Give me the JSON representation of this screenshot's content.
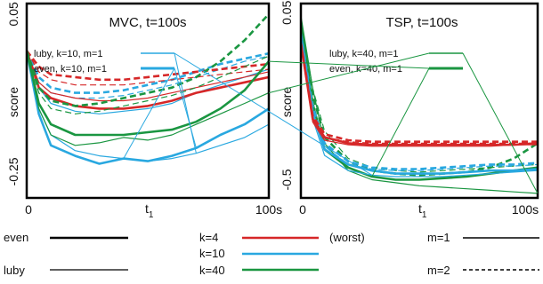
{
  "chart_data": [
    {
      "type": "line",
      "title": "MVC, t=100s",
      "xlabel": "t",
      "xlabel_sub": "1",
      "ylabel": "score",
      "xlim": [
        0,
        100
      ],
      "ylim": [
        -0.3,
        0.07
      ],
      "x_tick_labels": [
        "0",
        "100s"
      ],
      "y_ticks": [
        {
          "value": 0.05,
          "label": "0.05"
        },
        {
          "value": -0.25,
          "label": "-0.25"
        }
      ],
      "grid": false,
      "legend": [
        {
          "label": "luby, k=10, m=1",
          "color": "#29a8e0",
          "dash": "solid",
          "width": 1.4
        },
        {
          "label": "even, k=10, m=1",
          "color": "#29a8e0",
          "dash": "solid",
          "width": 3
        }
      ],
      "x": [
        0,
        5,
        10,
        20,
        30,
        40,
        50,
        60,
        70,
        80,
        90,
        100
      ],
      "series": [
        {
          "group": "luby-k10-m1",
          "color": "#29a8e0",
          "dash": "solid",
          "width": 1.2,
          "values": [
            -0.02,
            -0.13,
            -0.18,
            -0.21,
            -0.22,
            -0.225,
            -0.23,
            -0.225,
            -0.215,
            -0.2,
            -0.185,
            -0.16
          ]
        },
        {
          "group": "even-k10-m1",
          "color": "#29a8e0",
          "dash": "solid",
          "width": 2.6,
          "values": [
            -0.02,
            -0.14,
            -0.2,
            -0.22,
            -0.235,
            -0.225,
            -0.23,
            -0.22,
            -0.205,
            -0.18,
            -0.16,
            -0.13
          ]
        },
        {
          "color": "#29a8e0",
          "dash": "solid",
          "width": 1.2,
          "values": [
            -0.02,
            -0.09,
            -0.12,
            -0.135,
            -0.14,
            -0.135,
            -0.13,
            -0.12,
            -0.1,
            -0.085,
            -0.07,
            -0.055
          ]
        },
        {
          "color": "#29a8e0",
          "dash": "dash",
          "width": 2.6,
          "values": [
            -0.02,
            -0.07,
            -0.09,
            -0.1,
            -0.1,
            -0.095,
            -0.085,
            -0.075,
            -0.06,
            -0.045,
            -0.035,
            -0.025
          ]
        },
        {
          "color": "#29a8e0",
          "dash": "dash",
          "width": 1.2,
          "values": [
            -0.02,
            -0.08,
            -0.1,
            -0.11,
            -0.11,
            -0.105,
            -0.095,
            -0.085,
            -0.07,
            -0.055,
            -0.04,
            -0.03
          ]
        },
        {
          "color": "#d62728",
          "dash": "solid",
          "width": 2.6,
          "values": [
            -0.02,
            -0.09,
            -0.11,
            -0.125,
            -0.13,
            -0.13,
            -0.125,
            -0.115,
            -0.1,
            -0.09,
            -0.08,
            -0.07
          ]
        },
        {
          "color": "#d62728",
          "dash": "solid",
          "width": 1.2,
          "values": [
            -0.02,
            -0.08,
            -0.1,
            -0.11,
            -0.115,
            -0.115,
            -0.11,
            -0.1,
            -0.09,
            -0.08,
            -0.07,
            -0.06
          ]
        },
        {
          "color": "#d62728",
          "dash": "dash",
          "width": 2.6,
          "values": [
            -0.02,
            -0.05,
            -0.065,
            -0.07,
            -0.075,
            -0.075,
            -0.07,
            -0.065,
            -0.06,
            -0.055,
            -0.05,
            -0.045
          ]
        },
        {
          "color": "#d62728",
          "dash": "dash",
          "width": 1.2,
          "values": [
            -0.02,
            -0.06,
            -0.075,
            -0.085,
            -0.085,
            -0.085,
            -0.08,
            -0.075,
            -0.07,
            -0.065,
            -0.06,
            -0.055
          ]
        },
        {
          "color": "#1a9641",
          "dash": "solid",
          "width": 2.6,
          "values": [
            -0.02,
            -0.12,
            -0.16,
            -0.18,
            -0.18,
            -0.18,
            -0.175,
            -0.17,
            -0.155,
            -0.13,
            -0.095,
            -0.04
          ]
        },
        {
          "color": "#1a9641",
          "dash": "solid",
          "width": 1.2,
          "values": [
            -0.02,
            -0.13,
            -0.18,
            -0.2,
            -0.195,
            -0.185,
            -0.19,
            -0.18,
            -0.16,
            -0.14,
            -0.12,
            -0.1
          ]
        },
        {
          "color": "#1a9641",
          "dash": "dash",
          "width": 2.6,
          "values": [
            -0.02,
            -0.09,
            -0.115,
            -0.125,
            -0.12,
            -0.11,
            -0.1,
            -0.09,
            -0.07,
            -0.04,
            0.0,
            0.05
          ]
        },
        {
          "color": "#1a9641",
          "dash": "dash",
          "width": 1.2,
          "values": [
            -0.02,
            -0.1,
            -0.13,
            -0.14,
            -0.135,
            -0.125,
            -0.115,
            -0.105,
            -0.09,
            -0.07,
            -0.05,
            -0.03
          ]
        }
      ]
    },
    {
      "type": "line",
      "title": "TSP, t=100s",
      "xlabel": "t",
      "xlabel_sub": "1",
      "ylabel": "score",
      "xlim": [
        0,
        100
      ],
      "ylim": [
        -0.56,
        0.08
      ],
      "x_tick_labels": [
        "0",
        "100s"
      ],
      "y_ticks": [
        {
          "value": 0.05,
          "label": "0.05"
        },
        {
          "value": -0.5,
          "label": "-0.5"
        }
      ],
      "grid": false,
      "legend": [
        {
          "label": "luby, k=40, m=1",
          "color": "#1a9641",
          "dash": "solid",
          "width": 1.4
        },
        {
          "label": "even, k=40, m=1",
          "color": "#1a9641",
          "dash": "solid",
          "width": 3
        }
      ],
      "x": [
        0,
        5,
        10,
        20,
        30,
        40,
        50,
        60,
        70,
        80,
        90,
        100
      ],
      "series": [
        {
          "group": "luby-k40-m1",
          "color": "#1a9641",
          "dash": "solid",
          "width": 1.2,
          "values": [
            0.04,
            -0.2,
            -0.38,
            -0.47,
            -0.5,
            -0.51,
            -0.52,
            -0.525,
            -0.53,
            -0.535,
            -0.54,
            -0.545
          ]
        },
        {
          "group": "even-k40-m1",
          "color": "#1a9641",
          "dash": "solid",
          "width": 2.6,
          "values": [
            0.02,
            -0.25,
            -0.4,
            -0.46,
            -0.49,
            -0.5,
            -0.5,
            -0.495,
            -0.49,
            -0.48,
            -0.47,
            -0.46
          ]
        },
        {
          "color": "#1a9641",
          "dash": "dash",
          "width": 2.6,
          "values": [
            0.02,
            -0.22,
            -0.36,
            -0.44,
            -0.47,
            -0.48,
            -0.485,
            -0.48,
            -0.475,
            -0.46,
            -0.43,
            -0.38
          ]
        },
        {
          "color": "#1a9641",
          "dash": "dash",
          "width": 1.2,
          "values": [
            0.03,
            -0.2,
            -0.34,
            -0.43,
            -0.46,
            -0.47,
            -0.475,
            -0.47,
            -0.465,
            -0.46,
            -0.455,
            -0.45
          ]
        },
        {
          "color": "#29a8e0",
          "dash": "solid",
          "width": 2.6,
          "values": [
            -0.02,
            -0.28,
            -0.4,
            -0.45,
            -0.47,
            -0.48,
            -0.48,
            -0.48,
            -0.475,
            -0.47,
            -0.47,
            -0.465
          ]
        },
        {
          "color": "#29a8e0",
          "dash": "solid",
          "width": 1.2,
          "values": [
            -0.02,
            -0.3,
            -0.42,
            -0.47,
            -0.485,
            -0.49,
            -0.49,
            -0.49,
            -0.485,
            -0.48,
            -0.475,
            -0.47
          ]
        },
        {
          "color": "#29a8e0",
          "dash": "dash",
          "width": 2.6,
          "values": [
            -0.02,
            -0.26,
            -0.38,
            -0.44,
            -0.46,
            -0.465,
            -0.465,
            -0.46,
            -0.455,
            -0.45,
            -0.45,
            -0.445
          ]
        },
        {
          "color": "#29a8e0",
          "dash": "dash",
          "width": 1.2,
          "values": [
            -0.02,
            -0.27,
            -0.39,
            -0.45,
            -0.465,
            -0.47,
            -0.47,
            -0.465,
            -0.46,
            -0.455,
            -0.455,
            -0.45
          ]
        },
        {
          "color": "#d62728",
          "dash": "solid",
          "width": 2.6,
          "values": [
            -0.05,
            -0.3,
            -0.36,
            -0.38,
            -0.385,
            -0.385,
            -0.385,
            -0.385,
            -0.385,
            -0.385,
            -0.385,
            -0.38
          ]
        },
        {
          "color": "#d62728",
          "dash": "solid",
          "width": 1.2,
          "values": [
            -0.05,
            -0.31,
            -0.37,
            -0.385,
            -0.39,
            -0.39,
            -0.39,
            -0.39,
            -0.39,
            -0.39,
            -0.385,
            -0.385
          ]
        },
        {
          "color": "#d62728",
          "dash": "dash",
          "width": 2.6,
          "values": [
            -0.05,
            -0.29,
            -0.35,
            -0.37,
            -0.375,
            -0.375,
            -0.375,
            -0.375,
            -0.375,
            -0.375,
            -0.375,
            -0.375
          ]
        },
        {
          "color": "#d62728",
          "dash": "dash",
          "width": 1.2,
          "values": [
            -0.05,
            -0.3,
            -0.36,
            -0.375,
            -0.38,
            -0.38,
            -0.38,
            -0.38,
            -0.38,
            -0.38,
            -0.38,
            -0.38
          ]
        }
      ]
    }
  ],
  "key": {
    "restart": [
      {
        "label": "even",
        "color": "#000000",
        "width": 2.6,
        "dash": "solid"
      },
      {
        "label": "luby",
        "color": "#000000",
        "width": 1.2,
        "dash": "solid"
      }
    ],
    "k": [
      {
        "label": "k=4",
        "color": "#d62728",
        "note": "(worst)"
      },
      {
        "label": "k=10",
        "color": "#29a8e0"
      },
      {
        "label": "k=40",
        "color": "#1a9641"
      }
    ],
    "m": [
      {
        "label": "m=1",
        "color": "#000000",
        "dash": "solid"
      },
      {
        "label": "m=2",
        "color": "#000000",
        "dash": "dash"
      }
    ]
  }
}
